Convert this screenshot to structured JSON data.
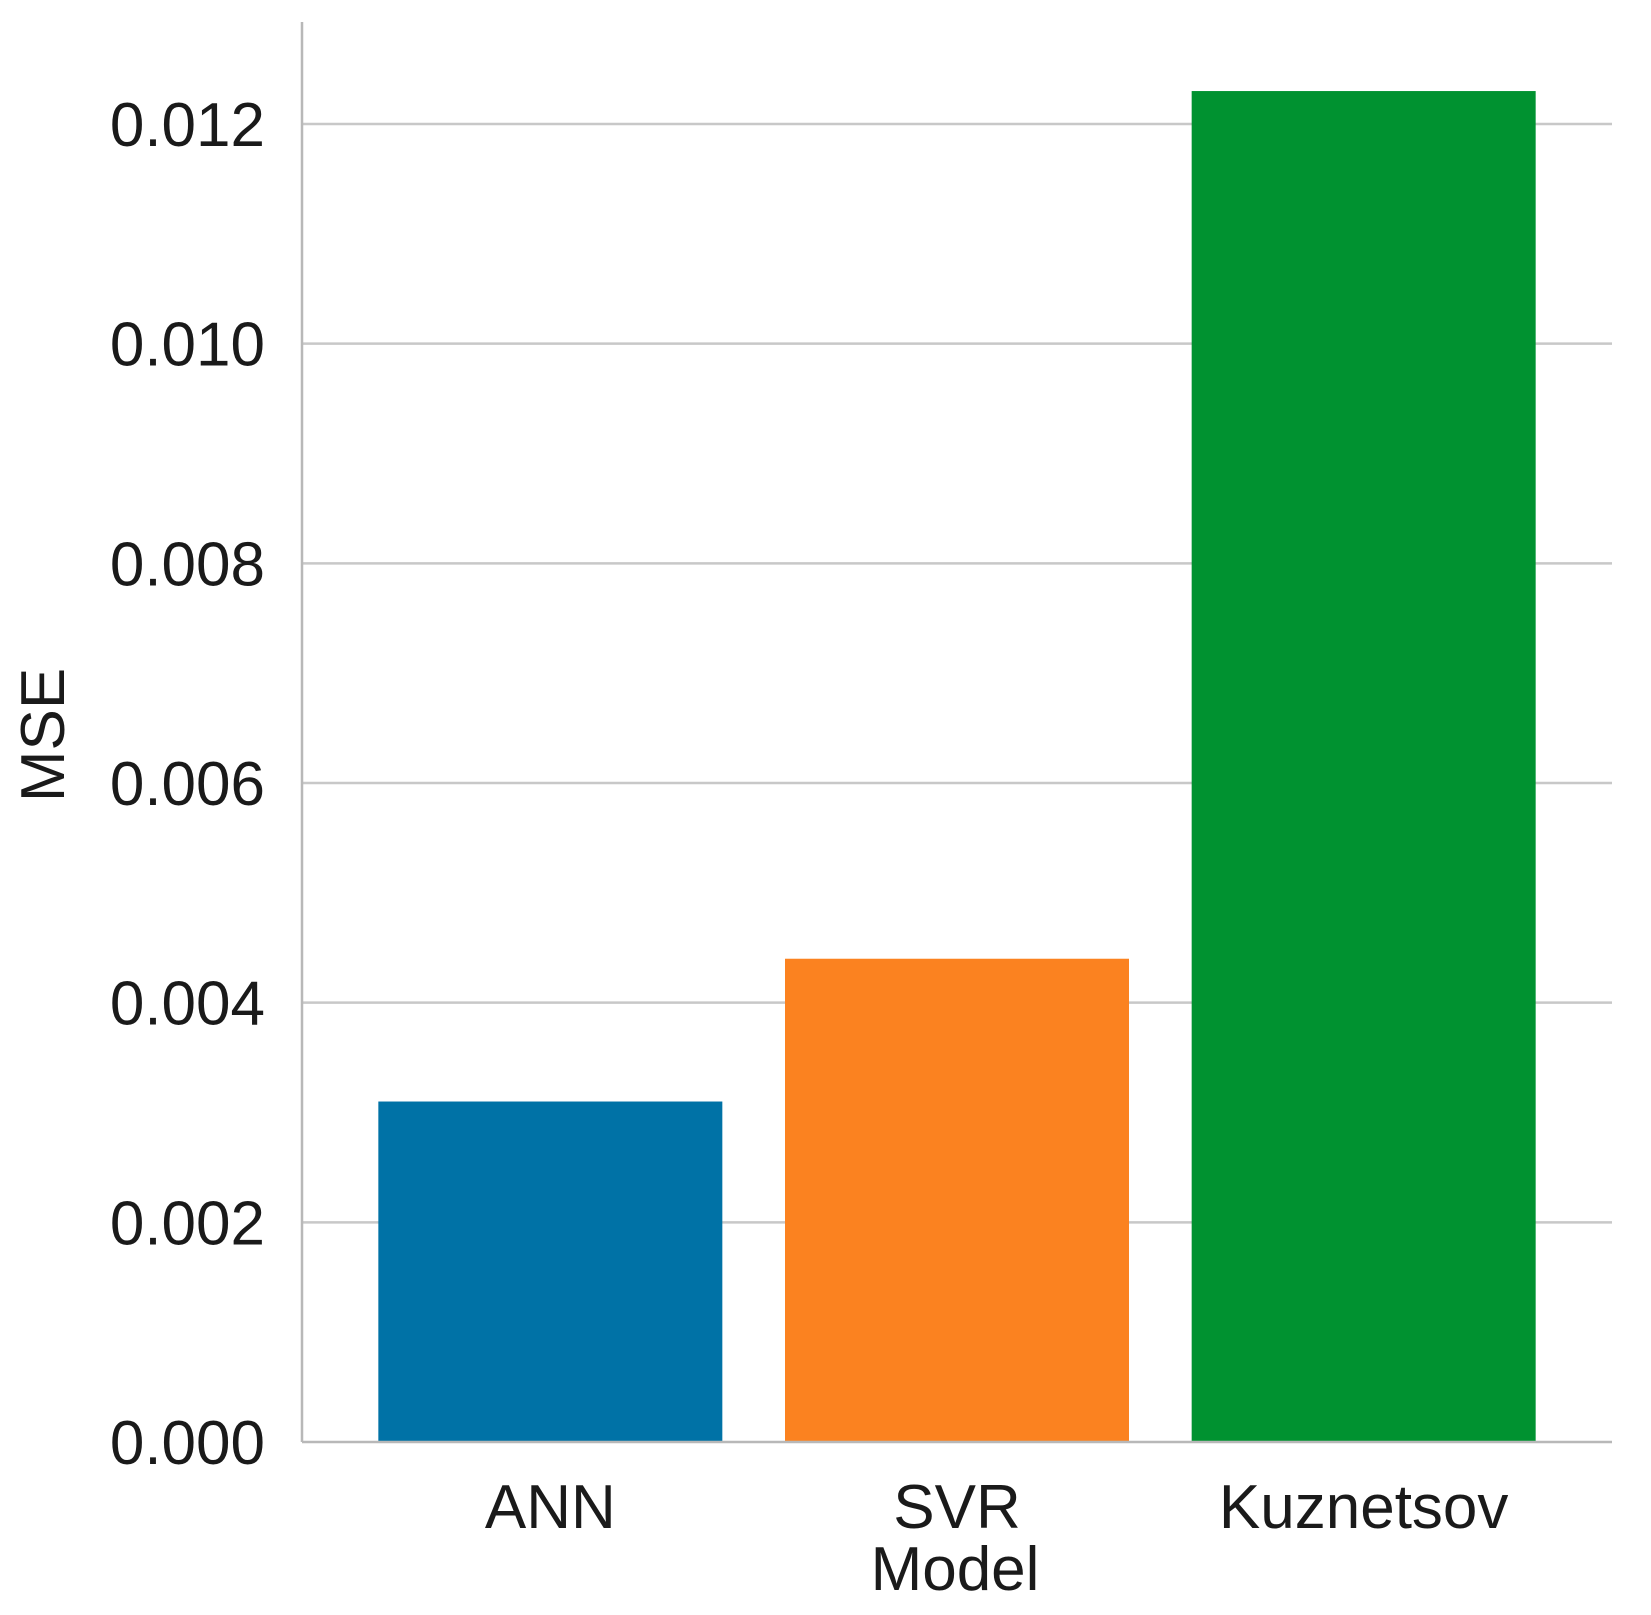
{
  "chart_data": {
    "type": "bar",
    "categories": [
      "ANN",
      "SVR",
      "Kuznetsov"
    ],
    "values": [
      0.0031,
      0.0044,
      0.0123
    ],
    "colors": [
      "#0072a6",
      "#fb8220",
      "#009230"
    ],
    "xlabel": "Model",
    "ylabel": "MSE",
    "ylim": [
      0,
      0.0129
    ],
    "yticks": [
      0,
      0.002,
      0.004,
      0.006,
      0.008,
      0.01,
      0.012
    ],
    "ytick_labels": [
      "0.000",
      "0.002",
      "0.004",
      "0.006",
      "0.008",
      "0.010",
      "0.012"
    ],
    "grid": true,
    "grid_axis": "y"
  }
}
